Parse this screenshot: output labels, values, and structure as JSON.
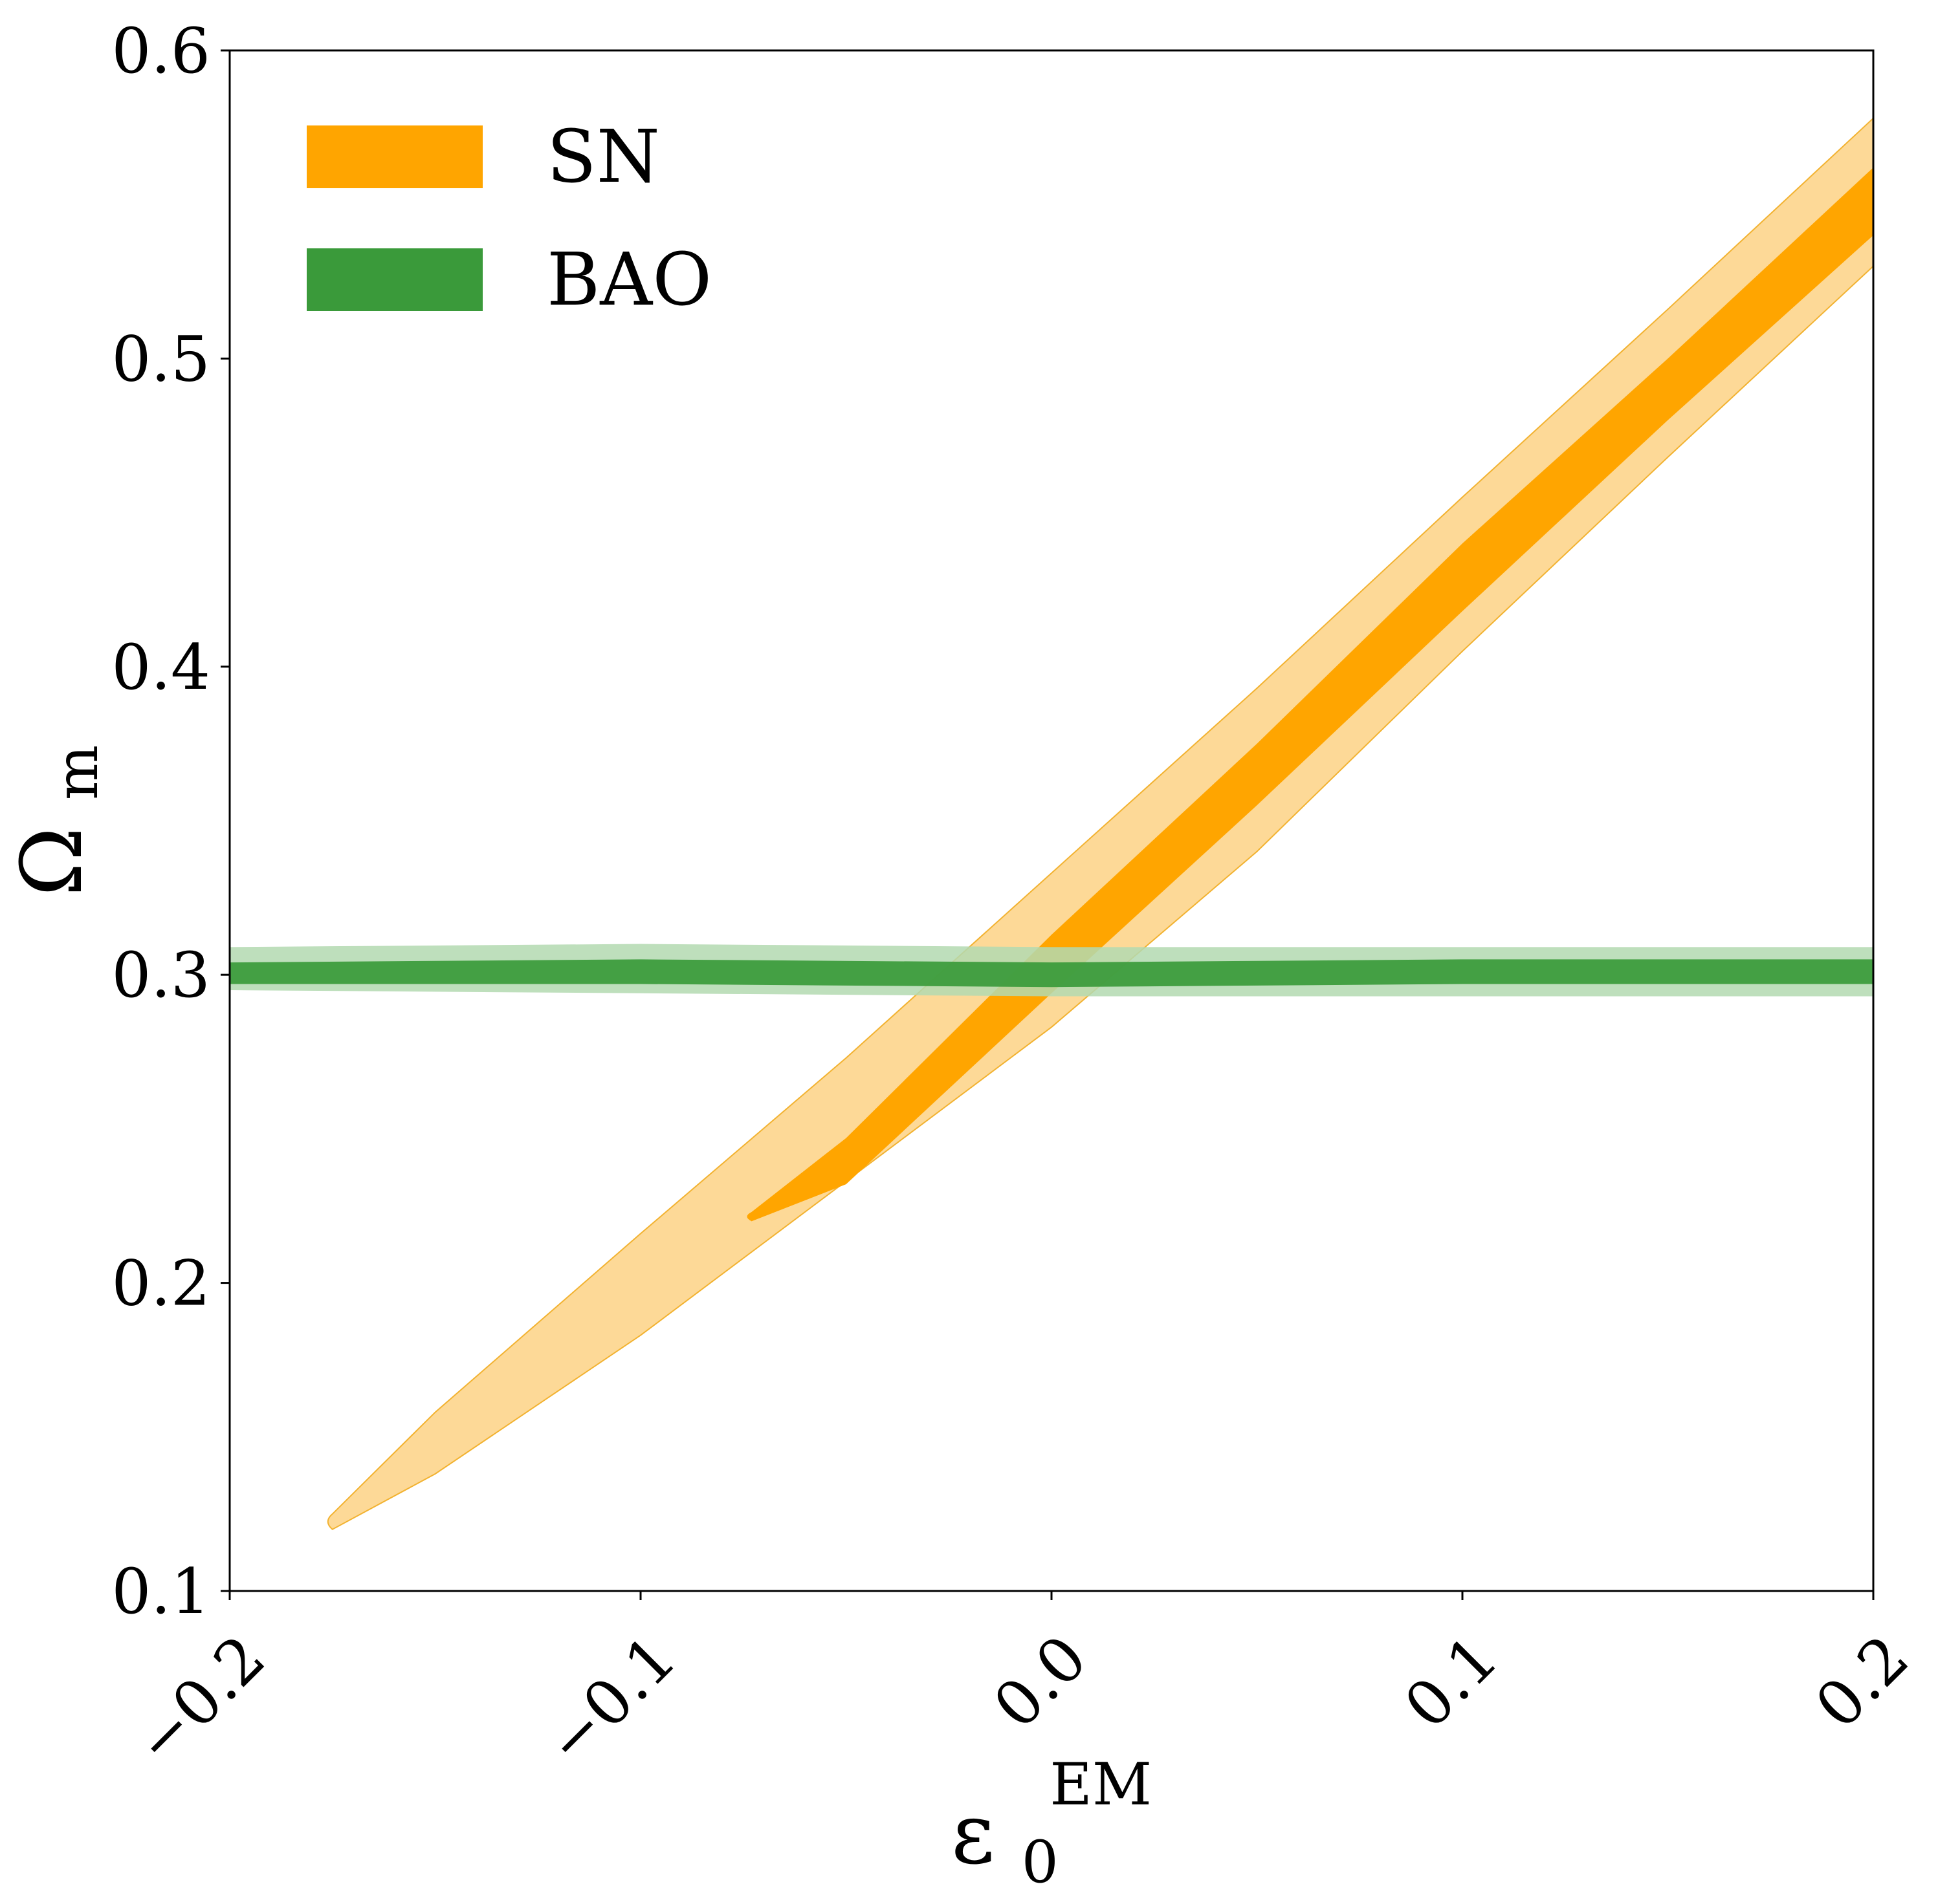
{
  "chart_data": {
    "type": "contour",
    "xlabel": "ε",
    "xlabel_sub": "0",
    "xlabel_sup": "EM",
    "ylabel": "Ω",
    "ylabel_sub": "m",
    "xlim": [
      -0.2,
      0.2
    ],
    "ylim": [
      0.1,
      0.6
    ],
    "xticks": [
      -0.2,
      -0.1,
      0.0,
      0.1,
      0.2
    ],
    "xtick_labels": [
      "−0.2",
      "−0.1",
      "0.0",
      "0.1",
      "0.2"
    ],
    "yticks": [
      0.1,
      0.2,
      0.3,
      0.4,
      0.5,
      0.6
    ],
    "ytick_labels": [
      "0.1",
      "0.2",
      "0.3",
      "0.4",
      "0.5",
      "0.6"
    ],
    "grid": false,
    "legend_position": "top-left",
    "series": [
      {
        "name": "SN",
        "color": "#FFA500",
        "color_light": "#FDD997",
        "contours": {
          "outer_upper": [
            [
              -0.175,
              0.125
            ],
            [
              -0.15,
              0.158
            ],
            [
              -0.1,
              0.216
            ],
            [
              -0.05,
              0.273
            ],
            [
              0.0,
              0.333
            ],
            [
              0.05,
              0.393
            ],
            [
              0.1,
              0.455
            ],
            [
              0.15,
              0.516
            ],
            [
              0.2,
              0.578
            ]
          ],
          "outer_lower": [
            [
              -0.175,
              0.12
            ],
            [
              -0.15,
              0.138
            ],
            [
              -0.1,
              0.183
            ],
            [
              -0.05,
              0.233
            ],
            [
              0.0,
              0.283
            ],
            [
              0.05,
              0.34
            ],
            [
              0.1,
              0.405
            ],
            [
              0.15,
              0.468
            ],
            [
              0.2,
              0.53
            ]
          ],
          "inner_upper": [
            [
              -0.073,
              0.223
            ],
            [
              -0.05,
              0.247
            ],
            [
              0.0,
              0.313
            ],
            [
              0.05,
              0.375
            ],
            [
              0.1,
              0.44
            ],
            [
              0.15,
              0.5
            ],
            [
              0.2,
              0.562
            ]
          ],
          "inner_lower": [
            [
              -0.073,
              0.22
            ],
            [
              -0.05,
              0.232
            ],
            [
              0.0,
              0.294
            ],
            [
              0.05,
              0.355
            ],
            [
              0.1,
              0.418
            ],
            [
              0.15,
              0.48
            ],
            [
              0.2,
              0.54
            ]
          ]
        }
      },
      {
        "name": "BAO",
        "color": "#3A9A3A",
        "color_light": "#B3D9B0",
        "contours": {
          "outer_upper": [
            [
              -0.2,
              0.309
            ],
            [
              -0.1,
              0.31
            ],
            [
              0.0,
              0.309
            ],
            [
              0.1,
              0.309
            ],
            [
              0.2,
              0.309
            ]
          ],
          "outer_lower": [
            [
              -0.2,
              0.295
            ],
            [
              -0.1,
              0.294
            ],
            [
              0.0,
              0.293
            ],
            [
              0.1,
              0.293
            ],
            [
              0.2,
              0.293
            ]
          ],
          "inner_upper": [
            [
              -0.2,
              0.304
            ],
            [
              -0.1,
              0.305
            ],
            [
              0.0,
              0.304
            ],
            [
              0.1,
              0.305
            ],
            [
              0.2,
              0.305
            ]
          ],
          "inner_lower": [
            [
              -0.2,
              0.297
            ],
            [
              -0.1,
              0.297
            ],
            [
              0.0,
              0.296
            ],
            [
              0.1,
              0.297
            ],
            [
              0.2,
              0.297
            ]
          ]
        }
      }
    ]
  }
}
